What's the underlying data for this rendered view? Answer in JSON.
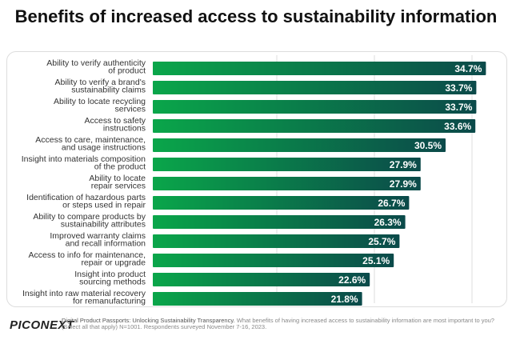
{
  "chart_data": {
    "type": "bar",
    "orientation": "horizontal",
    "title": "Benefits of increased access to sustainability information",
    "categories": [
      "Ability to verify authenticity of product",
      "Ability to verify a brand's sustainability claims",
      "Ability to locate recycling services",
      "Access to safety instructions",
      "Access to care, maintenance, and usage instructions",
      "Insight into materials composition of the product",
      "Ability to locate repair services",
      "Identification of hazardous parts or steps used in repair",
      "Ability to compare products by sustainability attributes",
      "Improved warranty claims and recall information",
      "Access to info for maintenance, repair or upgrade",
      "Insight into product sourcing methods",
      "Insight into raw material recovery for remanufacturing"
    ],
    "values": [
      34.7,
      33.7,
      33.7,
      33.6,
      30.5,
      27.9,
      27.9,
      26.7,
      26.3,
      25.7,
      25.1,
      22.6,
      21.8
    ],
    "value_format": "%",
    "grid": true,
    "colors": {
      "start": "#0aa64a",
      "end": "#0b4a4a"
    }
  },
  "footer": {
    "logo": "PICONEXT",
    "source": "Digital Product Passports: Unlocking Sustainability Transparency.",
    "question": "What benefits of having increased access to sustainability information are most important to you? (Select all that apply) N=1001. Respondents surveyed November 7-16, 2023."
  }
}
